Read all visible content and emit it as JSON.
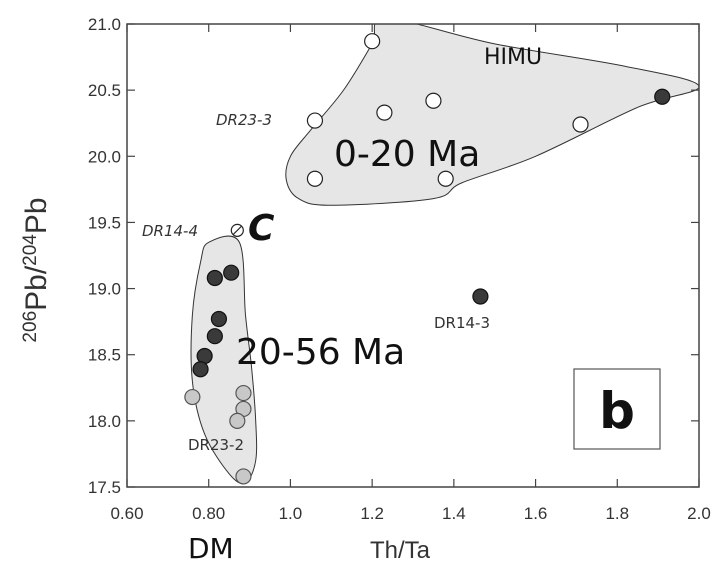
{
  "chart_data": {
    "type": "scatter",
    "xlabel": "Th/Ta",
    "ylabel_parts": {
      "sup1": "206",
      "mid": "Pb/",
      "sup2": "204",
      "end": "Pb"
    },
    "xlim": [
      0.6,
      2.0
    ],
    "ylim": [
      17.5,
      21.0
    ],
    "x_ticks": [
      "0.60",
      "0.80",
      "1.0",
      "1.2",
      "1.4",
      "1.6",
      "1.8",
      "2.0"
    ],
    "y_ticks": [
      "17.5",
      "18.0",
      "18.5",
      "19.0",
      "19.5",
      "20.0",
      "20.5",
      "21.0"
    ],
    "grid": false,
    "series": [
      {
        "name": "0-20 Ma",
        "style": "open",
        "points": [
          {
            "x": 1.2,
            "y": 20.87
          },
          {
            "x": 1.06,
            "y": 20.27
          },
          {
            "x": 1.23,
            "y": 20.33
          },
          {
            "x": 1.35,
            "y": 20.42
          },
          {
            "x": 1.71,
            "y": 20.24
          },
          {
            "x": 1.06,
            "y": 19.83
          },
          {
            "x": 1.38,
            "y": 19.83
          }
        ]
      },
      {
        "name": "20-56 Ma",
        "style": "filled-dark",
        "points": [
          {
            "x": 0.815,
            "y": 19.08
          },
          {
            "x": 0.855,
            "y": 19.12
          },
          {
            "x": 0.825,
            "y": 18.77
          },
          {
            "x": 0.815,
            "y": 18.64
          },
          {
            "x": 0.79,
            "y": 18.49
          },
          {
            "x": 0.78,
            "y": 18.39
          },
          {
            "x": 1.91,
            "y": 20.45
          },
          {
            "x": 1.465,
            "y": 18.94
          }
        ]
      },
      {
        "name": "DR23-2",
        "style": "filled-light",
        "points": [
          {
            "x": 0.76,
            "y": 18.18
          },
          {
            "x": 0.885,
            "y": 18.21
          },
          {
            "x": 0.885,
            "y": 18.09
          },
          {
            "x": 0.87,
            "y": 18.0
          },
          {
            "x": 0.885,
            "y": 17.58
          }
        ]
      },
      {
        "name": "DR14-4",
        "style": "hatched",
        "points": [
          {
            "x": 0.87,
            "y": 19.44
          }
        ]
      }
    ],
    "annotations": [
      {
        "id": "himu",
        "text": "HIMU"
      },
      {
        "id": "range-young",
        "text": "0-20 Ma"
      },
      {
        "id": "range-old",
        "text": "20-56 Ma"
      },
      {
        "id": "c",
        "text": "C"
      },
      {
        "id": "dm",
        "text": "DM"
      },
      {
        "id": "dr23-3",
        "text": "DR23-3"
      },
      {
        "id": "dr14-4",
        "text": "DR14-4"
      },
      {
        "id": "dr14-3",
        "text": "DR14-3"
      },
      {
        "id": "dr23-2",
        "text": "DR23-2"
      },
      {
        "id": "panel",
        "text": "b"
      }
    ],
    "fields": [
      {
        "name": "0-20 Ma field",
        "path": [
          [
            1.235,
            21.04
          ],
          [
            1.5,
            20.85
          ],
          [
            1.82,
            20.68
          ],
          [
            2.0,
            20.53
          ],
          [
            1.85,
            20.37
          ],
          [
            1.6,
            20.0
          ],
          [
            1.42,
            19.8
          ],
          [
            1.35,
            19.68
          ],
          [
            1.1,
            19.63
          ],
          [
            1.02,
            19.68
          ],
          [
            0.99,
            19.82
          ],
          [
            1.0,
            20.0
          ],
          [
            1.05,
            20.2
          ],
          [
            1.13,
            20.5
          ],
          [
            1.2,
            20.85
          ]
        ]
      },
      {
        "name": "20-56 Ma field",
        "path": [
          [
            0.8,
            19.35
          ],
          [
            0.875,
            19.35
          ],
          [
            0.89,
            18.8
          ],
          [
            0.905,
            18.4
          ],
          [
            0.915,
            18.0
          ],
          [
            0.915,
            17.7
          ],
          [
            0.89,
            17.53
          ],
          [
            0.85,
            17.6
          ],
          [
            0.79,
            17.9
          ],
          [
            0.76,
            18.3
          ],
          [
            0.76,
            18.8
          ],
          [
            0.78,
            19.2
          ]
        ]
      }
    ]
  }
}
